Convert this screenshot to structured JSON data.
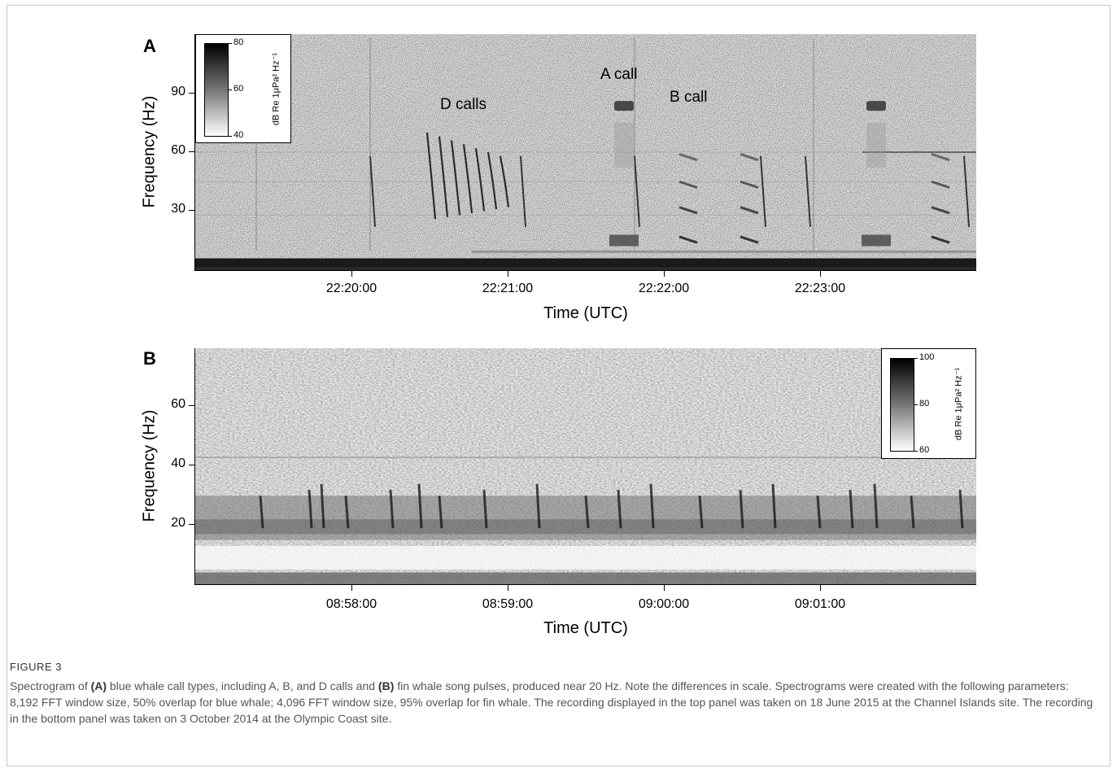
{
  "panels": [
    {
      "label": "A",
      "yaxis": {
        "title": "Frequency (Hz)",
        "ticks": [
          "90",
          "60",
          "30"
        ],
        "tick_values": [
          90,
          60,
          30
        ],
        "ylim": [
          0,
          120
        ]
      },
      "xaxis": {
        "title": "Time (UTC)",
        "ticks": [
          "22:20:00",
          "22:21:00",
          "22:22:00",
          "22:23:00"
        ]
      },
      "colorbar": {
        "title": "dB Re 1μPa² Hz⁻¹",
        "max": "80",
        "mid": "60",
        "min": "40",
        "placement": "top-left"
      },
      "annotations": [
        "D calls",
        "A call",
        "B call"
      ]
    },
    {
      "label": "B",
      "yaxis": {
        "title": "Frequency (Hz)",
        "ticks": [
          "60",
          "40",
          "20"
        ],
        "tick_values": [
          60,
          40,
          20
        ],
        "ylim": [
          0,
          80
        ]
      },
      "xaxis": {
        "title": "Time (UTC)",
        "ticks": [
          "08:58:00",
          "08:59:00",
          "09:00:00",
          "09:01:00"
        ]
      },
      "colorbar": {
        "title": "dB Re 1μPa² Hz⁻¹",
        "max": "100",
        "mid": "80",
        "min": "60",
        "placement": "top-right"
      },
      "annotations": []
    }
  ],
  "caption": {
    "label": "FIGURE 3",
    "parts": {
      "t1": "Spectrogram of ",
      "a": "(A)",
      "t2": " blue whale call types, including A, B, and D calls and ",
      "b": "(B)",
      "t3": " fin whale song pulses, produced near 20 Hz. Note the differences in scale. Spectrograms were created with the following parameters: 8,192 FFT window size, 50% overlap for blue whale; 4,096 FFT window size, 95% overlap for fin whale. The recording displayed in the top panel was taken on 18 June 2015 at the Channel Islands site. The recording in the bottom panel was taken on 3 October 2014 at the Olympic Coast site."
    }
  },
  "chart_data": [
    {
      "type": "heatmap",
      "title": "",
      "xlabel": "Time (UTC)",
      "ylabel": "Frequency (Hz)",
      "x_ticks": [
        "22:20:00",
        "22:21:00",
        "22:22:00",
        "22:23:00"
      ],
      "y_ticks": [
        30,
        60,
        90
      ],
      "ylim": [
        0,
        120
      ],
      "colorbar": {
        "label": "dB Re 1μPa² Hz⁻¹",
        "range": [
          40,
          80
        ]
      },
      "annotations": [
        "D calls",
        "A call",
        "B call"
      ]
    },
    {
      "type": "heatmap",
      "title": "",
      "xlabel": "Time (UTC)",
      "ylabel": "Frequency (Hz)",
      "x_ticks": [
        "08:58:00",
        "08:59:00",
        "09:00:00",
        "09:01:00"
      ],
      "y_ticks": [
        20,
        40,
        60
      ],
      "ylim": [
        0,
        80
      ],
      "colorbar": {
        "label": "dB Re 1μPa² Hz⁻¹",
        "range": [
          60,
          100
        ]
      },
      "annotations": []
    }
  ]
}
